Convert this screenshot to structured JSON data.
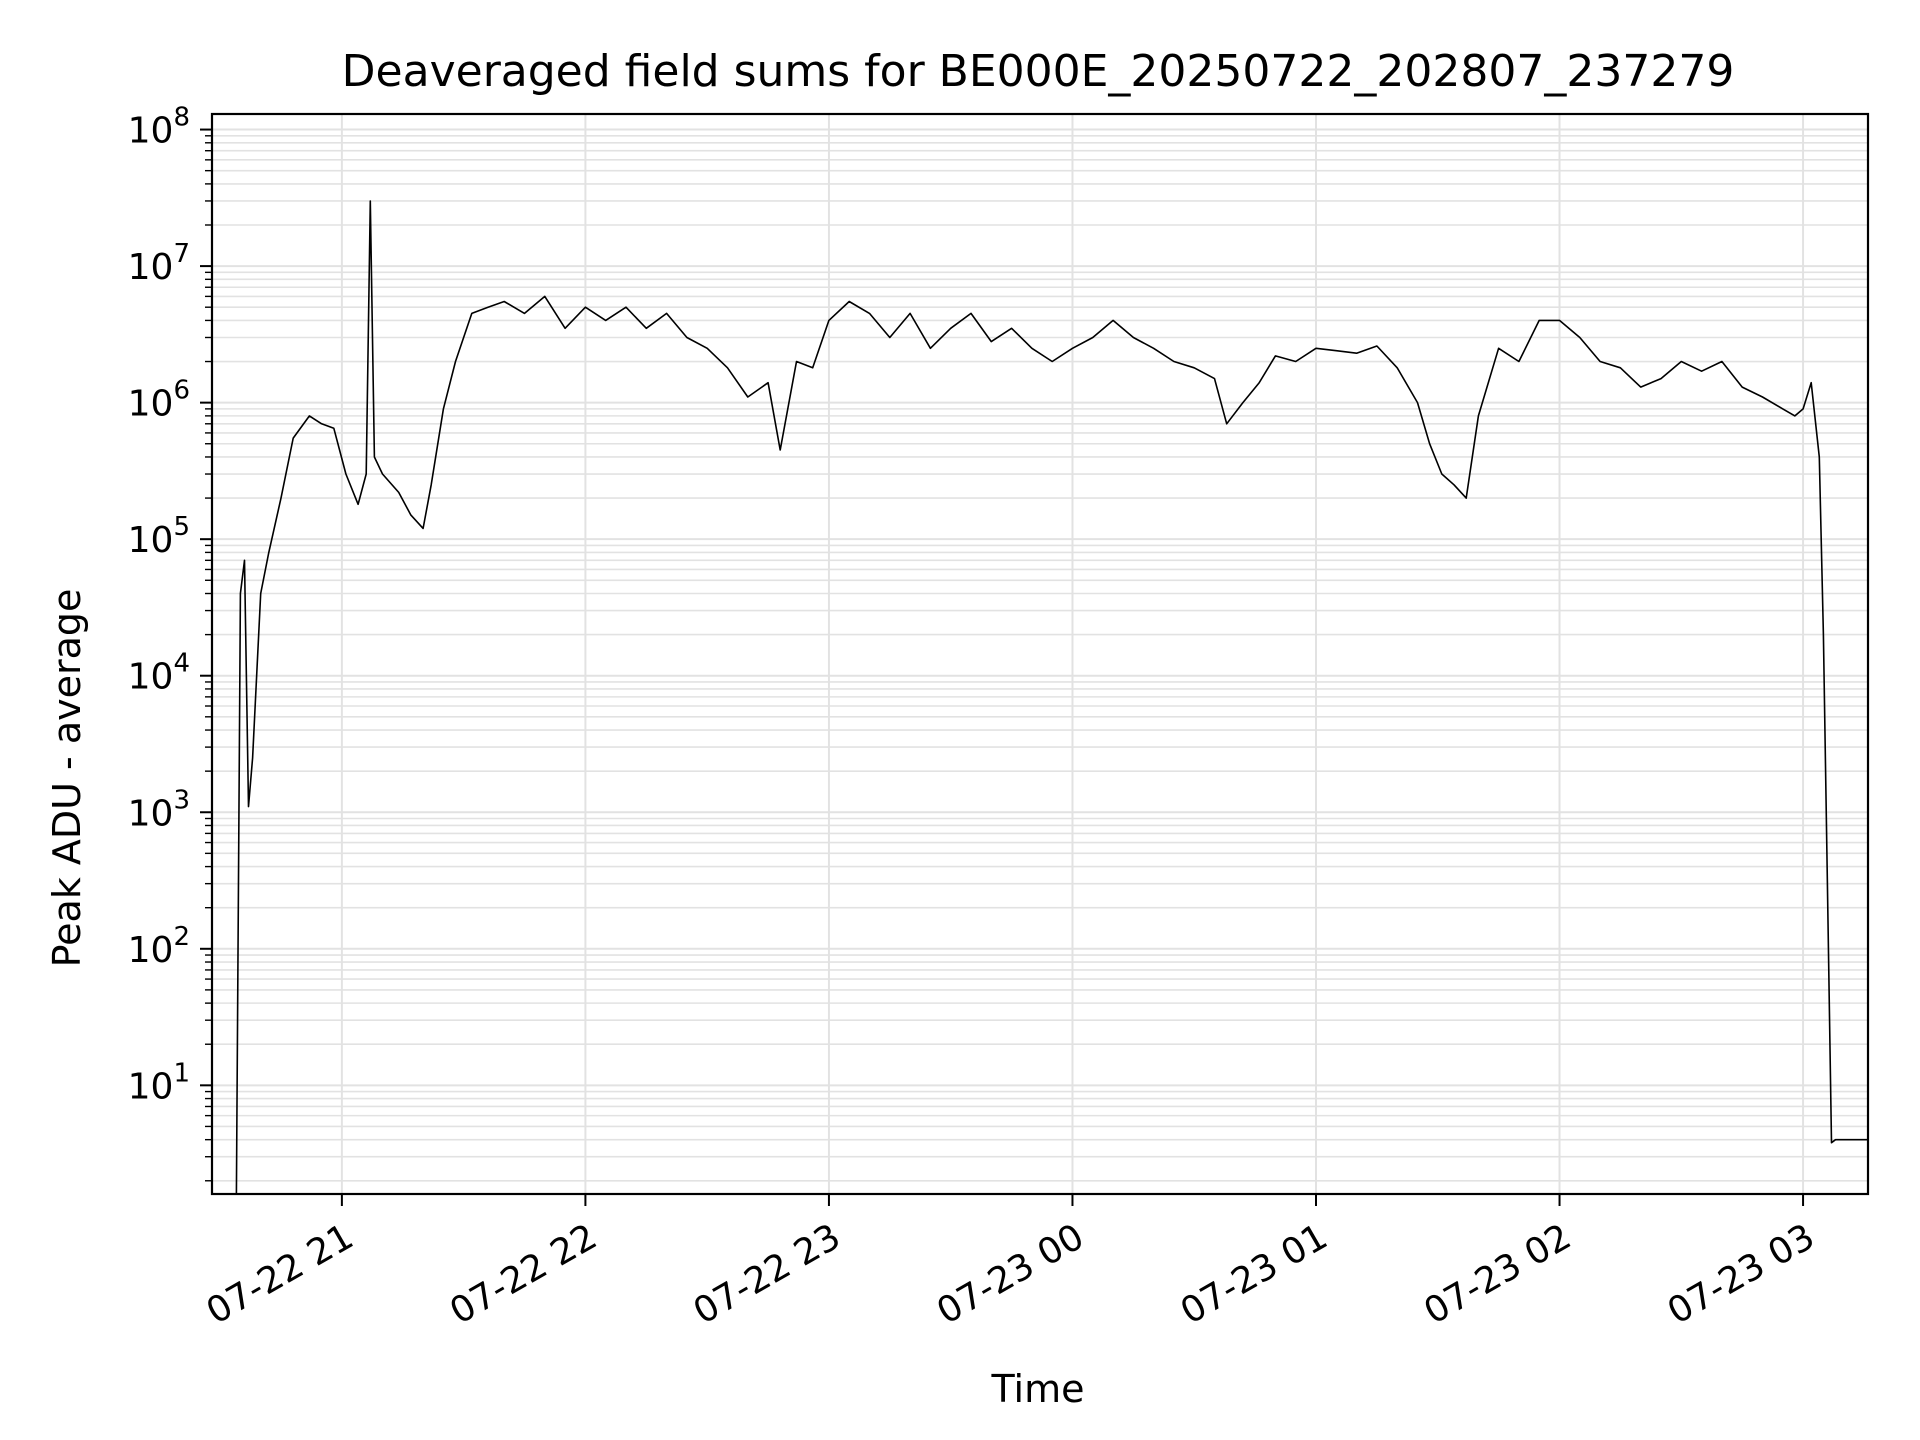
{
  "chart_data": {
    "type": "line",
    "title": "Deaveraged field sums for BE000E_20250722_202807_237279",
    "xlabel": "Time",
    "ylabel": "Peak ADU - average",
    "yscale": "log",
    "ylim": [
      1.6,
      130000000
    ],
    "xlim": [
      "2025-07-22 20:28",
      "2025-07-23 03:16"
    ],
    "grid": true,
    "line_color": "#000000",
    "x_ticks": [
      {
        "time": "2025-07-22 21:00",
        "label": "07-22 21"
      },
      {
        "time": "2025-07-22 22:00",
        "label": "07-22 22"
      },
      {
        "time": "2025-07-22 23:00",
        "label": "07-22 23"
      },
      {
        "time": "2025-07-23 00:00",
        "label": "07-23 00"
      },
      {
        "time": "2025-07-23 01:00",
        "label": "07-23 01"
      },
      {
        "time": "2025-07-23 02:00",
        "label": "07-23 02"
      },
      {
        "time": "2025-07-23 03:00",
        "label": "07-23 03"
      }
    ],
    "y_ticks": [
      {
        "value": 10,
        "base": "10",
        "exp": "1"
      },
      {
        "value": 100,
        "base": "10",
        "exp": "2"
      },
      {
        "value": 1000,
        "base": "10",
        "exp": "3"
      },
      {
        "value": 10000,
        "base": "10",
        "exp": "4"
      },
      {
        "value": 100000,
        "base": "10",
        "exp": "5"
      },
      {
        "value": 1000000,
        "base": "10",
        "exp": "6"
      },
      {
        "value": 10000000,
        "base": "10",
        "exp": "7"
      },
      {
        "value": 100000000,
        "base": "10",
        "exp": "8"
      }
    ],
    "series": [
      {
        "x": [
          "2025-07-22 20:34",
          "2025-07-22 20:35",
          "2025-07-22 20:36",
          "2025-07-22 20:37",
          "2025-07-22 20:38",
          "2025-07-22 20:40",
          "2025-07-22 20:42",
          "2025-07-22 20:45",
          "2025-07-22 20:48",
          "2025-07-22 20:52",
          "2025-07-22 20:55",
          "2025-07-22 20:58",
          "2025-07-22 21:01",
          "2025-07-22 21:04",
          "2025-07-22 21:06",
          "2025-07-22 21:07",
          "2025-07-22 21:08",
          "2025-07-22 21:10",
          "2025-07-22 21:14",
          "2025-07-22 21:17",
          "2025-07-22 21:20",
          "2025-07-22 21:22",
          "2025-07-22 21:25",
          "2025-07-22 21:28",
          "2025-07-22 21:32",
          "2025-07-22 21:36",
          "2025-07-22 21:40",
          "2025-07-22 21:45",
          "2025-07-22 21:50",
          "2025-07-22 21:55",
          "2025-07-22 22:00",
          "2025-07-22 22:05",
          "2025-07-22 22:10",
          "2025-07-22 22:15",
          "2025-07-22 22:20",
          "2025-07-22 22:25",
          "2025-07-22 22:30",
          "2025-07-22 22:35",
          "2025-07-22 22:40",
          "2025-07-22 22:45",
          "2025-07-22 22:48",
          "2025-07-22 22:52",
          "2025-07-22 22:56",
          "2025-07-22 23:00",
          "2025-07-22 23:05",
          "2025-07-22 23:10",
          "2025-07-22 23:15",
          "2025-07-22 23:20",
          "2025-07-22 23:25",
          "2025-07-22 23:30",
          "2025-07-22 23:35",
          "2025-07-22 23:40",
          "2025-07-22 23:45",
          "2025-07-22 23:50",
          "2025-07-22 23:55",
          "2025-07-23 00:00",
          "2025-07-23 00:05",
          "2025-07-23 00:10",
          "2025-07-23 00:15",
          "2025-07-23 00:20",
          "2025-07-23 00:25",
          "2025-07-23 00:30",
          "2025-07-23 00:35",
          "2025-07-23 00:38",
          "2025-07-23 00:42",
          "2025-07-23 00:46",
          "2025-07-23 00:50",
          "2025-07-23 00:55",
          "2025-07-23 01:00",
          "2025-07-23 01:05",
          "2025-07-23 01:10",
          "2025-07-23 01:15",
          "2025-07-23 01:20",
          "2025-07-23 01:25",
          "2025-07-23 01:28",
          "2025-07-23 01:31",
          "2025-07-23 01:34",
          "2025-07-23 01:37",
          "2025-07-23 01:40",
          "2025-07-23 01:45",
          "2025-07-23 01:50",
          "2025-07-23 01:55",
          "2025-07-23 02:00",
          "2025-07-23 02:05",
          "2025-07-23 02:10",
          "2025-07-23 02:15",
          "2025-07-23 02:20",
          "2025-07-23 02:25",
          "2025-07-23 02:30",
          "2025-07-23 02:35",
          "2025-07-23 02:40",
          "2025-07-23 02:45",
          "2025-07-23 02:50",
          "2025-07-23 02:55",
          "2025-07-23 02:58",
          "2025-07-23 03:00",
          "2025-07-23 03:02",
          "2025-07-23 03:04",
          "2025-07-23 03:05",
          "2025-07-23 03:06",
          "2025-07-23 03:07",
          "2025-07-23 03:08",
          "2025-07-23 03:10",
          "2025-07-23 03:13",
          "2025-07-23 03:16"
        ],
        "values": [
          1.6,
          40000,
          70000,
          1100,
          2500,
          40000,
          80000,
          200000,
          550000,
          800000,
          700000,
          650000,
          300000,
          180000,
          300000,
          30000000,
          400000,
          300000,
          220000,
          150000,
          120000,
          250000,
          900000,
          2000000,
          4500000,
          5000000,
          5500000,
          4500000,
          6000000,
          3500000,
          5000000,
          4000000,
          5000000,
          3500000,
          4500000,
          3000000,
          2500000,
          1800000,
          1100000,
          1400000,
          450000,
          2000000,
          1800000,
          4000000,
          5500000,
          4500000,
          3000000,
          4500000,
          2500000,
          3500000,
          4500000,
          2800000,
          3500000,
          2500000,
          2000000,
          2500000,
          3000000,
          4000000,
          3000000,
          2500000,
          2000000,
          1800000,
          1500000,
          700000,
          1000000,
          1400000,
          2200000,
          2000000,
          2500000,
          2400000,
          2300000,
          2600000,
          1800000,
          1000000,
          500000,
          300000,
          250000,
          200000,
          800000,
          2500000,
          2000000,
          4000000,
          4000000,
          3000000,
          2000000,
          1800000,
          1300000,
          1500000,
          2000000,
          1700000,
          2000000,
          1300000,
          1100000,
          900000,
          800000,
          900000,
          1400000,
          400000,
          20000,
          300,
          3.8,
          4,
          4,
          4,
          4
        ]
      }
    ]
  }
}
